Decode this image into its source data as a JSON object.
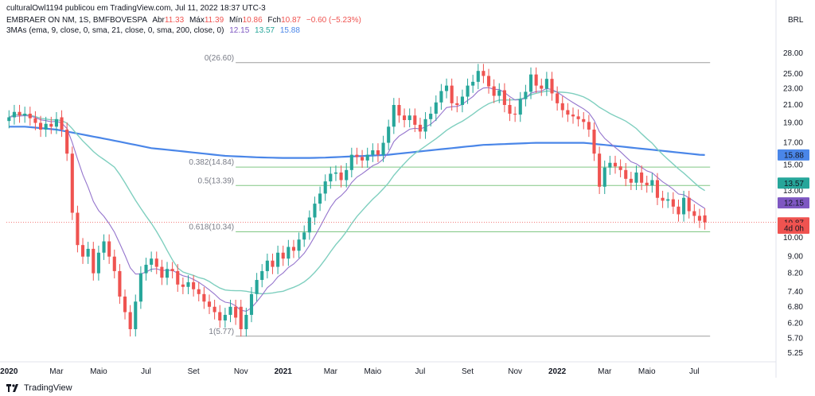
{
  "header": {
    "line1": "culturalOwl1194 publicou em TradingView.com, Jul 11, 2022 18:37 UTC-3",
    "symbol": "EMBRAER ON NM, 1S, BMFBOVESPA",
    "ohlc_open_label": "Abr",
    "ohlc_open": "11.33",
    "ohlc_high_label": "Máx",
    "ohlc_high": "11.39",
    "ohlc_low_label": "Mín",
    "ohlc_low": "10.86",
    "ohlc_close_label": "Fch",
    "ohlc_close": "10.87",
    "change": "−0.60 (−5.23%)",
    "mas_label": "3MAs (ema, 9, close, 0, sma, 21, close, 0, sma, 200, close, 0)",
    "ma1": "12.15",
    "ma2": "13.57",
    "ma3": "15.88",
    "currency": "BRL"
  },
  "colors": {
    "up": "#26a69a",
    "down": "#ef5350",
    "ema9": "#9575cd",
    "sma21": "#7fcfbf",
    "sma200": "#4a86e8",
    "fib": "#81c784",
    "fib_ext": "#9e9e9e"
  },
  "footer": {
    "brand": "TradingView"
  },
  "chart_data": {
    "type": "candlestick",
    "scale": "log",
    "ylim": [
      5.0,
      30.5
    ],
    "y_ticks": [
      "28.00",
      "25.00",
      "23.00",
      "21.00",
      "19.00",
      "17.00",
      "15.00",
      "13.00",
      "12.00",
      "11.00",
      "10.00",
      "9.00",
      "8.20",
      "7.40",
      "6.80",
      "6.20",
      "5.70",
      "5.25"
    ],
    "y_tick_values": [
      28,
      25,
      23,
      21,
      19,
      17,
      15,
      13,
      12,
      11,
      10,
      9,
      8.2,
      7.4,
      6.8,
      6.2,
      5.7,
      5.25
    ],
    "x_ticks": [
      "2020",
      "Mar",
      "Maio",
      "Jul",
      "Set",
      "Nov",
      "2021",
      "Mar",
      "Maio",
      "Jul",
      "Set",
      "Nov",
      "2022",
      "Mar",
      "Maio",
      "Jul"
    ],
    "x_tick_weeks": [
      0,
      9,
      17,
      26,
      35,
      44,
      52,
      61,
      69,
      78,
      87,
      96,
      104,
      113,
      121,
      130
    ],
    "weeks_total": 146,
    "closes": [
      19.6,
      20.2,
      19.8,
      20.0,
      19.5,
      19.0,
      18.3,
      18.9,
      18.6,
      19.4,
      18.3,
      16.0,
      11.5,
      9.6,
      9.0,
      9.4,
      8.2,
      9.2,
      9.8,
      9.0,
      8.3,
      7.2,
      6.6,
      6.0,
      7.0,
      8.2,
      8.6,
      8.9,
      8.5,
      8.0,
      8.4,
      8.3,
      7.7,
      7.6,
      7.8,
      7.5,
      7.3,
      7.0,
      6.8,
      6.6,
      6.3,
      6.5,
      6.8,
      6.4,
      6.0,
      6.5,
      7.3,
      7.9,
      8.3,
      8.8,
      8.5,
      9.2,
      8.9,
      9.5,
      9.3,
      9.9,
      10.3,
      11.2,
      12.1,
      12.8,
      13.7,
      14.3,
      14.4,
      13.8,
      14.6,
      15.9,
      15.7,
      15.4,
      15.9,
      16.3,
      15.9,
      17.0,
      18.6,
      21.0,
      19.8,
      19.3,
      19.8,
      18.8,
      18.1,
      19.4,
      20.0,
      21.3,
      22.7,
      23.4,
      21.2,
      21.0,
      22.0,
      23.4,
      23.9,
      25.4,
      24.7,
      23.3,
      22.1,
      22.8,
      21.0,
      20.0,
      19.9,
      21.7,
      22.6,
      24.9,
      23.4,
      23.0,
      24.3,
      22.4,
      21.2,
      20.4,
      19.9,
      19.7,
      19.4,
      19.1,
      18.3,
      16.0,
      13.3,
      14.8,
      15.2,
      14.9,
      14.6,
      13.9,
      13.6,
      14.4,
      13.6,
      13.4,
      13.8,
      12.5,
      12.3,
      12.4,
      11.9,
      11.4,
      12.5,
      11.6,
      11.3,
      11.0,
      10.9
    ],
    "opens": [
      19.2,
      19.6,
      20.2,
      19.8,
      20.0,
      19.5,
      19.0,
      18.3,
      18.9,
      18.6,
      19.6,
      18.3,
      16.0,
      11.5,
      9.6,
      9.0,
      9.4,
      8.2,
      9.2,
      9.8,
      9.0,
      8.3,
      7.2,
      6.6,
      6.0,
      7.0,
      8.2,
      8.6,
      8.9,
      8.5,
      8.0,
      8.4,
      8.3,
      7.7,
      7.6,
      7.8,
      7.5,
      7.3,
      7.0,
      6.8,
      6.6,
      6.3,
      6.5,
      6.8,
      6.8,
      6.0,
      6.5,
      7.3,
      7.9,
      8.3,
      8.8,
      8.5,
      9.2,
      8.9,
      9.5,
      9.3,
      9.9,
      10.3,
      11.2,
      12.1,
      12.8,
      13.7,
      14.3,
      14.4,
      13.8,
      14.6,
      15.9,
      15.7,
      15.4,
      15.9,
      16.3,
      15.9,
      17.0,
      18.6,
      21.0,
      19.8,
      19.3,
      19.8,
      18.8,
      18.1,
      19.4,
      20.0,
      21.3,
      22.7,
      23.4,
      21.2,
      21.0,
      22.0,
      23.4,
      23.9,
      25.4,
      24.7,
      23.3,
      22.1,
      22.8,
      21.0,
      20.0,
      19.9,
      21.7,
      22.6,
      24.9,
      23.4,
      23.0,
      24.3,
      22.4,
      21.2,
      20.4,
      19.9,
      19.7,
      19.4,
      19.1,
      18.3,
      16.0,
      13.3,
      14.8,
      15.2,
      14.9,
      14.6,
      13.9,
      13.6,
      14.4,
      13.6,
      13.4,
      13.8,
      12.5,
      12.3,
      12.4,
      11.9,
      11.4,
      12.5,
      11.6,
      11.3,
      11.33
    ],
    "sma200": [
      18.6,
      18.6,
      18.6,
      18.6,
      18.55,
      18.5,
      18.45,
      18.4,
      18.35,
      18.3,
      18.2,
      18.1,
      18.0,
      17.9,
      17.8,
      17.7,
      17.6,
      17.5,
      17.4,
      17.3,
      17.2,
      17.1,
      17.0,
      16.9,
      16.8,
      16.7,
      16.6,
      16.5,
      16.45,
      16.4,
      16.35,
      16.3,
      16.25,
      16.2,
      16.15,
      16.1,
      16.05,
      16.0,
      15.95,
      15.9,
      15.85,
      15.8,
      15.78,
      15.76,
      15.74,
      15.72,
      15.7,
      15.68,
      15.66,
      15.65,
      15.64,
      15.63,
      15.62,
      15.62,
      15.62,
      15.62,
      15.62,
      15.62,
      15.63,
      15.64,
      15.65,
      15.67,
      15.69,
      15.71,
      15.73,
      15.75,
      15.77,
      15.79,
      15.81,
      15.83,
      15.85,
      15.87,
      15.9,
      15.95,
      16.0,
      16.05,
      16.1,
      16.15,
      16.2,
      16.25,
      16.3,
      16.35,
      16.4,
      16.45,
      16.5,
      16.55,
      16.6,
      16.65,
      16.7,
      16.75,
      16.8,
      16.82,
      16.84,
      16.86,
      16.88,
      16.9,
      16.92,
      16.94,
      16.96,
      16.98,
      17.0,
      17.0,
      17.0,
      17.0,
      17.0,
      17.0,
      17.0,
      17.0,
      17.0,
      17.0,
      16.95,
      16.9,
      16.85,
      16.8,
      16.75,
      16.7,
      16.65,
      16.6,
      16.55,
      16.5,
      16.45,
      16.4,
      16.35,
      16.3,
      16.25,
      16.2,
      16.15,
      16.1,
      16.05,
      16.0,
      15.95,
      15.9,
      15.88
    ],
    "series_names": [
      "EMA 9",
      "SMA 21",
      "SMA 200"
    ],
    "fib_levels": [
      {
        "label": "0(26.60)",
        "value": 26.6
      },
      {
        "label": "0.382(14.84)",
        "value": 14.84
      },
      {
        "label": "0.5(13.39)",
        "value": 13.39
      },
      {
        "label": "0.618(10.34)",
        "value": 10.34
      },
      {
        "label": "1(5.77)",
        "value": 5.77
      }
    ],
    "price_labels": [
      {
        "text": "15.88",
        "value": 15.88,
        "color": "#4a86e8"
      },
      {
        "text": "13.57",
        "value": 13.57,
        "color": "#26a69a"
      },
      {
        "text": "12.15",
        "value": 12.15,
        "color": "#7e57c2"
      },
      {
        "text": "10.87",
        "value": 10.87,
        "color": "#ef5350"
      },
      {
        "text": "4d 0h",
        "value": 10.55,
        "color": "#ef5350"
      }
    ]
  }
}
